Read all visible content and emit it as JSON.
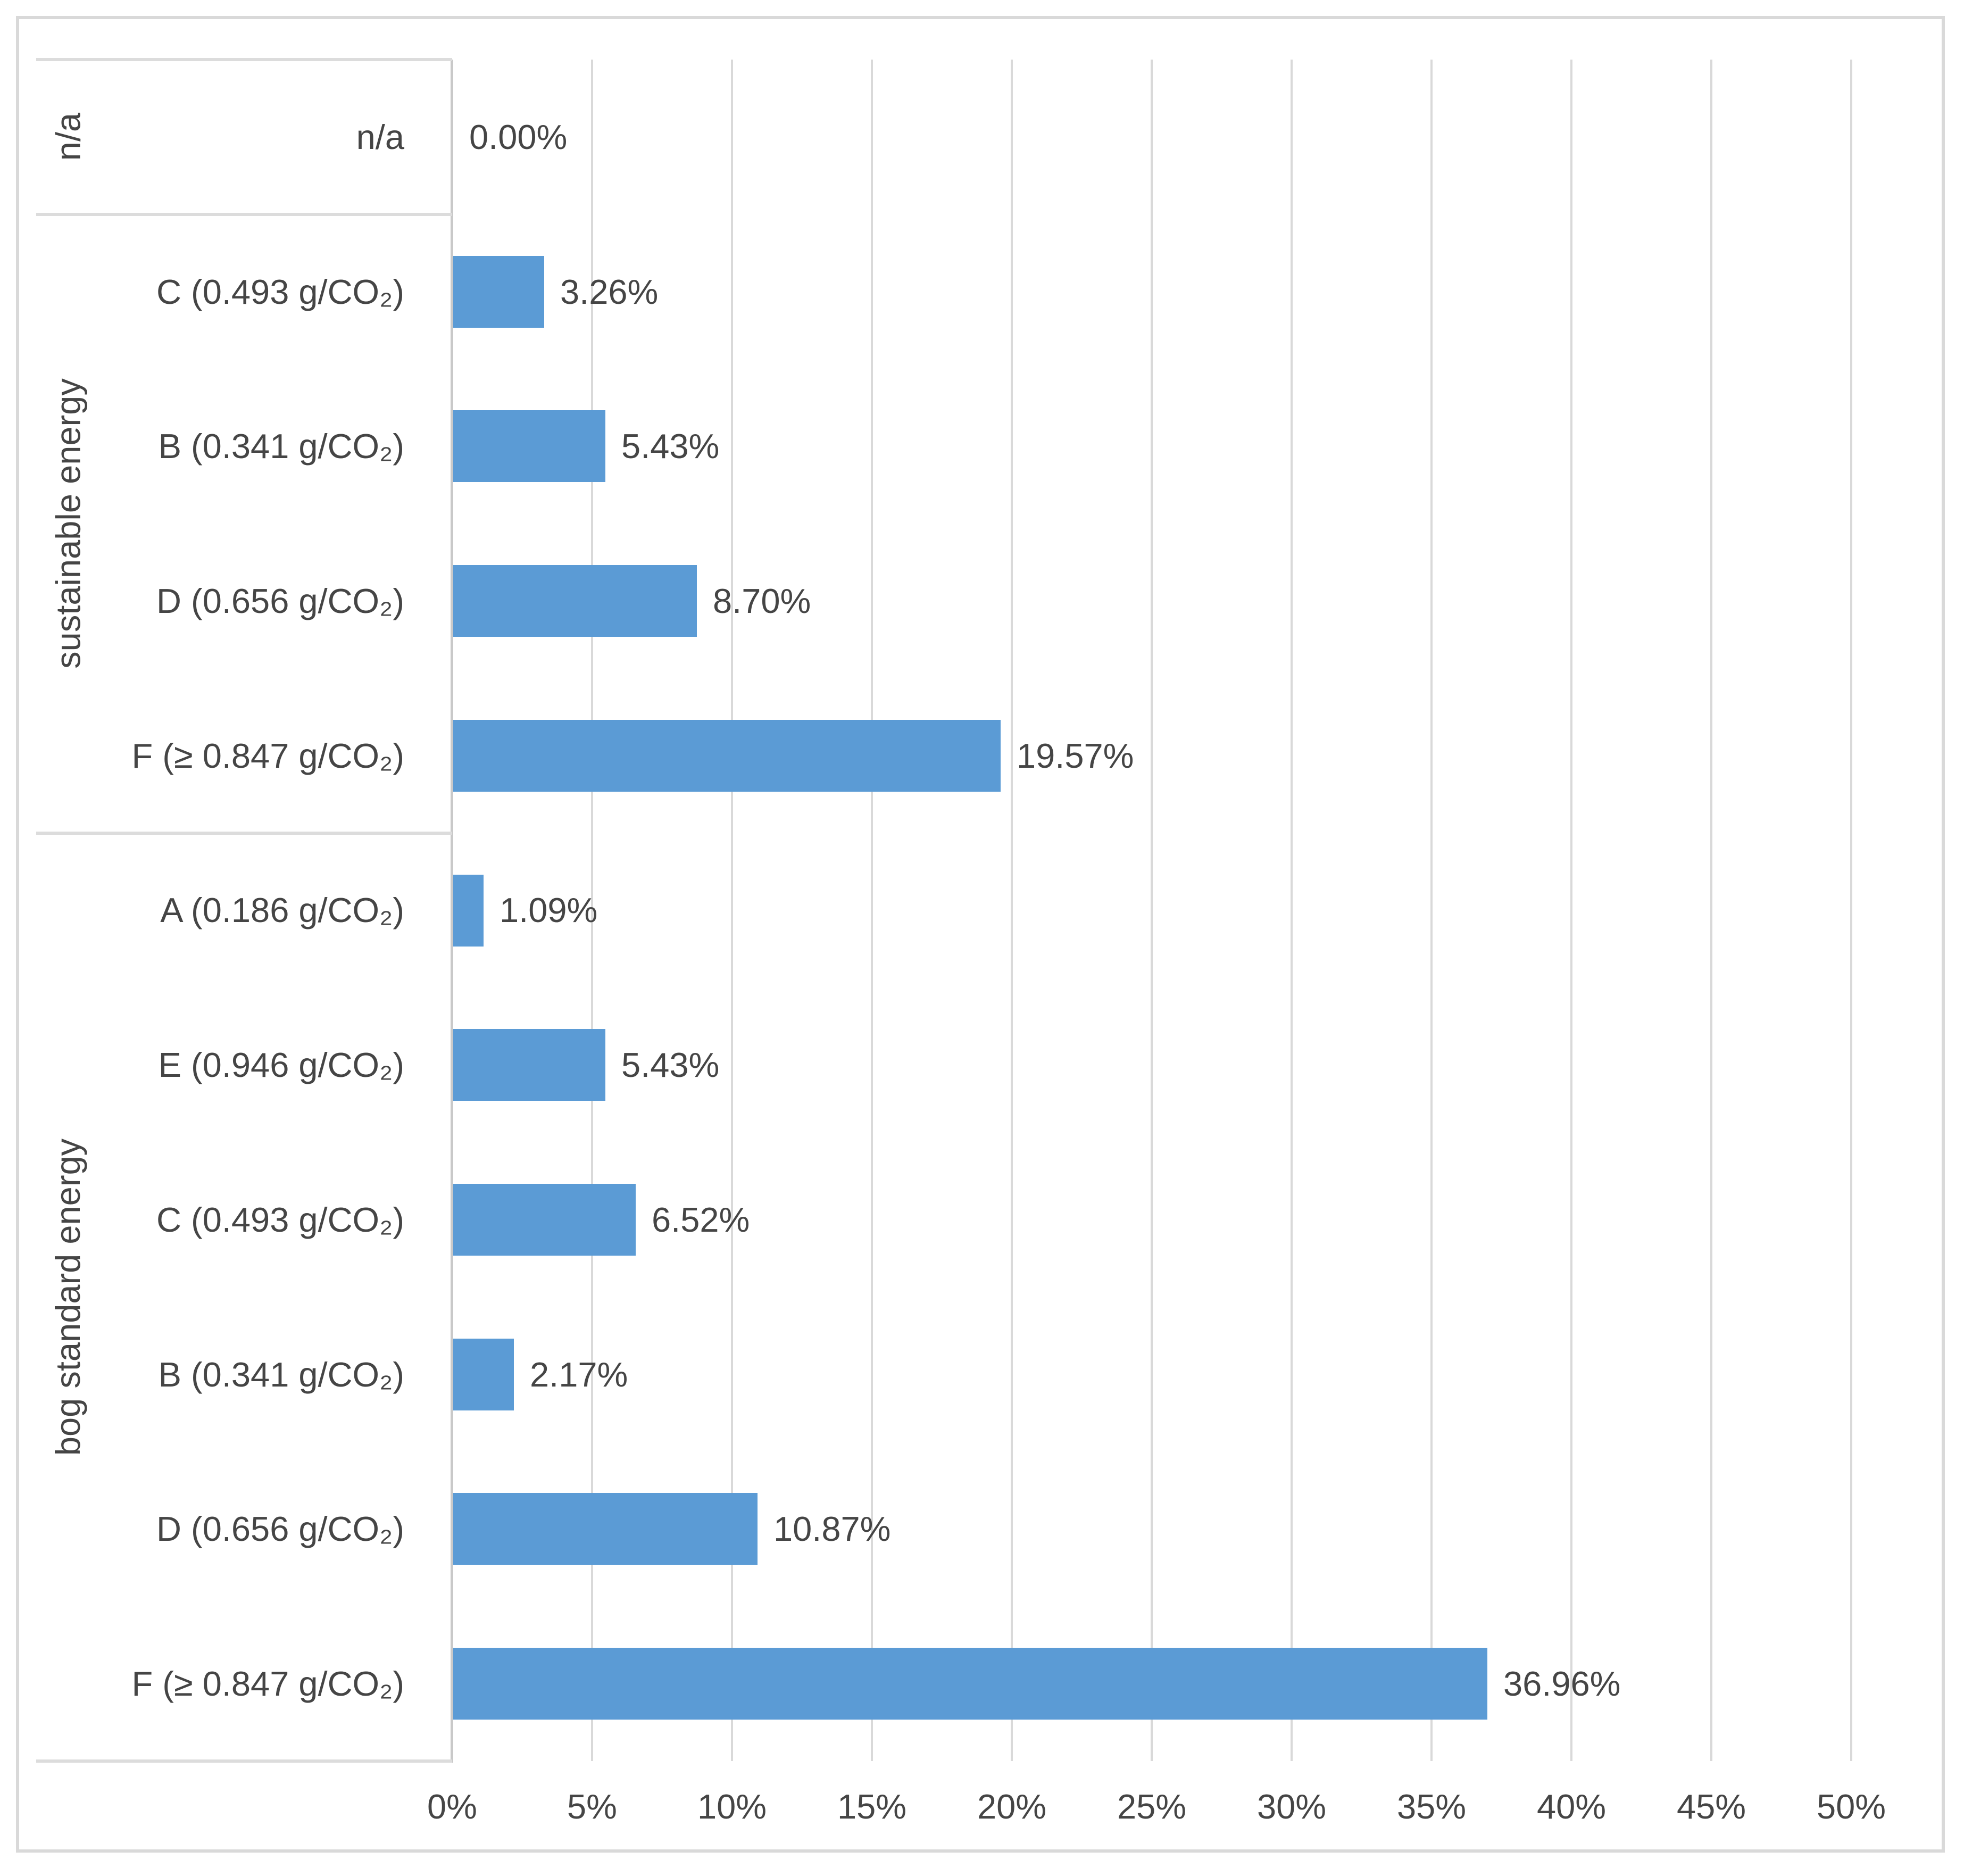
{
  "chart_data": {
    "type": "bar",
    "orientation": "horizontal",
    "title": "",
    "xlabel": "",
    "ylabel": "",
    "x_axis": {
      "min": 0,
      "max": 50,
      "unit": "%",
      "tick_labels": [
        "0%",
        "5%",
        "10%",
        "15%",
        "20%",
        "25%",
        "30%",
        "35%",
        "40%",
        "45%",
        "50%"
      ],
      "grid": true
    },
    "groups": [
      {
        "label": "n/a",
        "items": [
          {
            "category": "n/a",
            "value": 0.0,
            "value_label": "0.00%"
          }
        ]
      },
      {
        "label": "sustainable energy",
        "items": [
          {
            "category": "C (0.493 g/CO₂)",
            "value": 3.26,
            "value_label": "3.26%"
          },
          {
            "category": "B (0.341 g/CO₂)",
            "value": 5.43,
            "value_label": "5.43%"
          },
          {
            "category": "D (0.656 g/CO₂)",
            "value": 8.7,
            "value_label": "8.70%"
          },
          {
            "category": "F (≥ 0.847 g/CO₂)",
            "value": 19.57,
            "value_label": "19.57%"
          }
        ]
      },
      {
        "label": "bog standard energy",
        "items": [
          {
            "category": "A (0.186 g/CO₂)",
            "value": 1.09,
            "value_label": "1.09%"
          },
          {
            "category": "E (0.946 g/CO₂)",
            "value": 5.43,
            "value_label": "5.43%"
          },
          {
            "category": "C (0.493 g/CO₂)",
            "value": 6.52,
            "value_label": "6.52%"
          },
          {
            "category": "B (0.341 g/CO₂)",
            "value": 2.17,
            "value_label": "2.17%"
          },
          {
            "category": "D (0.656 g/CO₂)",
            "value": 10.87,
            "value_label": "10.87%"
          },
          {
            "category": "F (≥ 0.847 g/CO₂)",
            "value": 36.96,
            "value_label": "36.96%"
          }
        ]
      }
    ],
    "colors": {
      "bar": "#5B9BD5",
      "gridline": "#D9D9D9",
      "separator_line": "#DCDCDC",
      "axis_line": "#C9C9C9",
      "text": "#454545",
      "frame": "#D9D9D9",
      "background": "#FFFFFF"
    },
    "legend": {
      "visible": false
    }
  }
}
